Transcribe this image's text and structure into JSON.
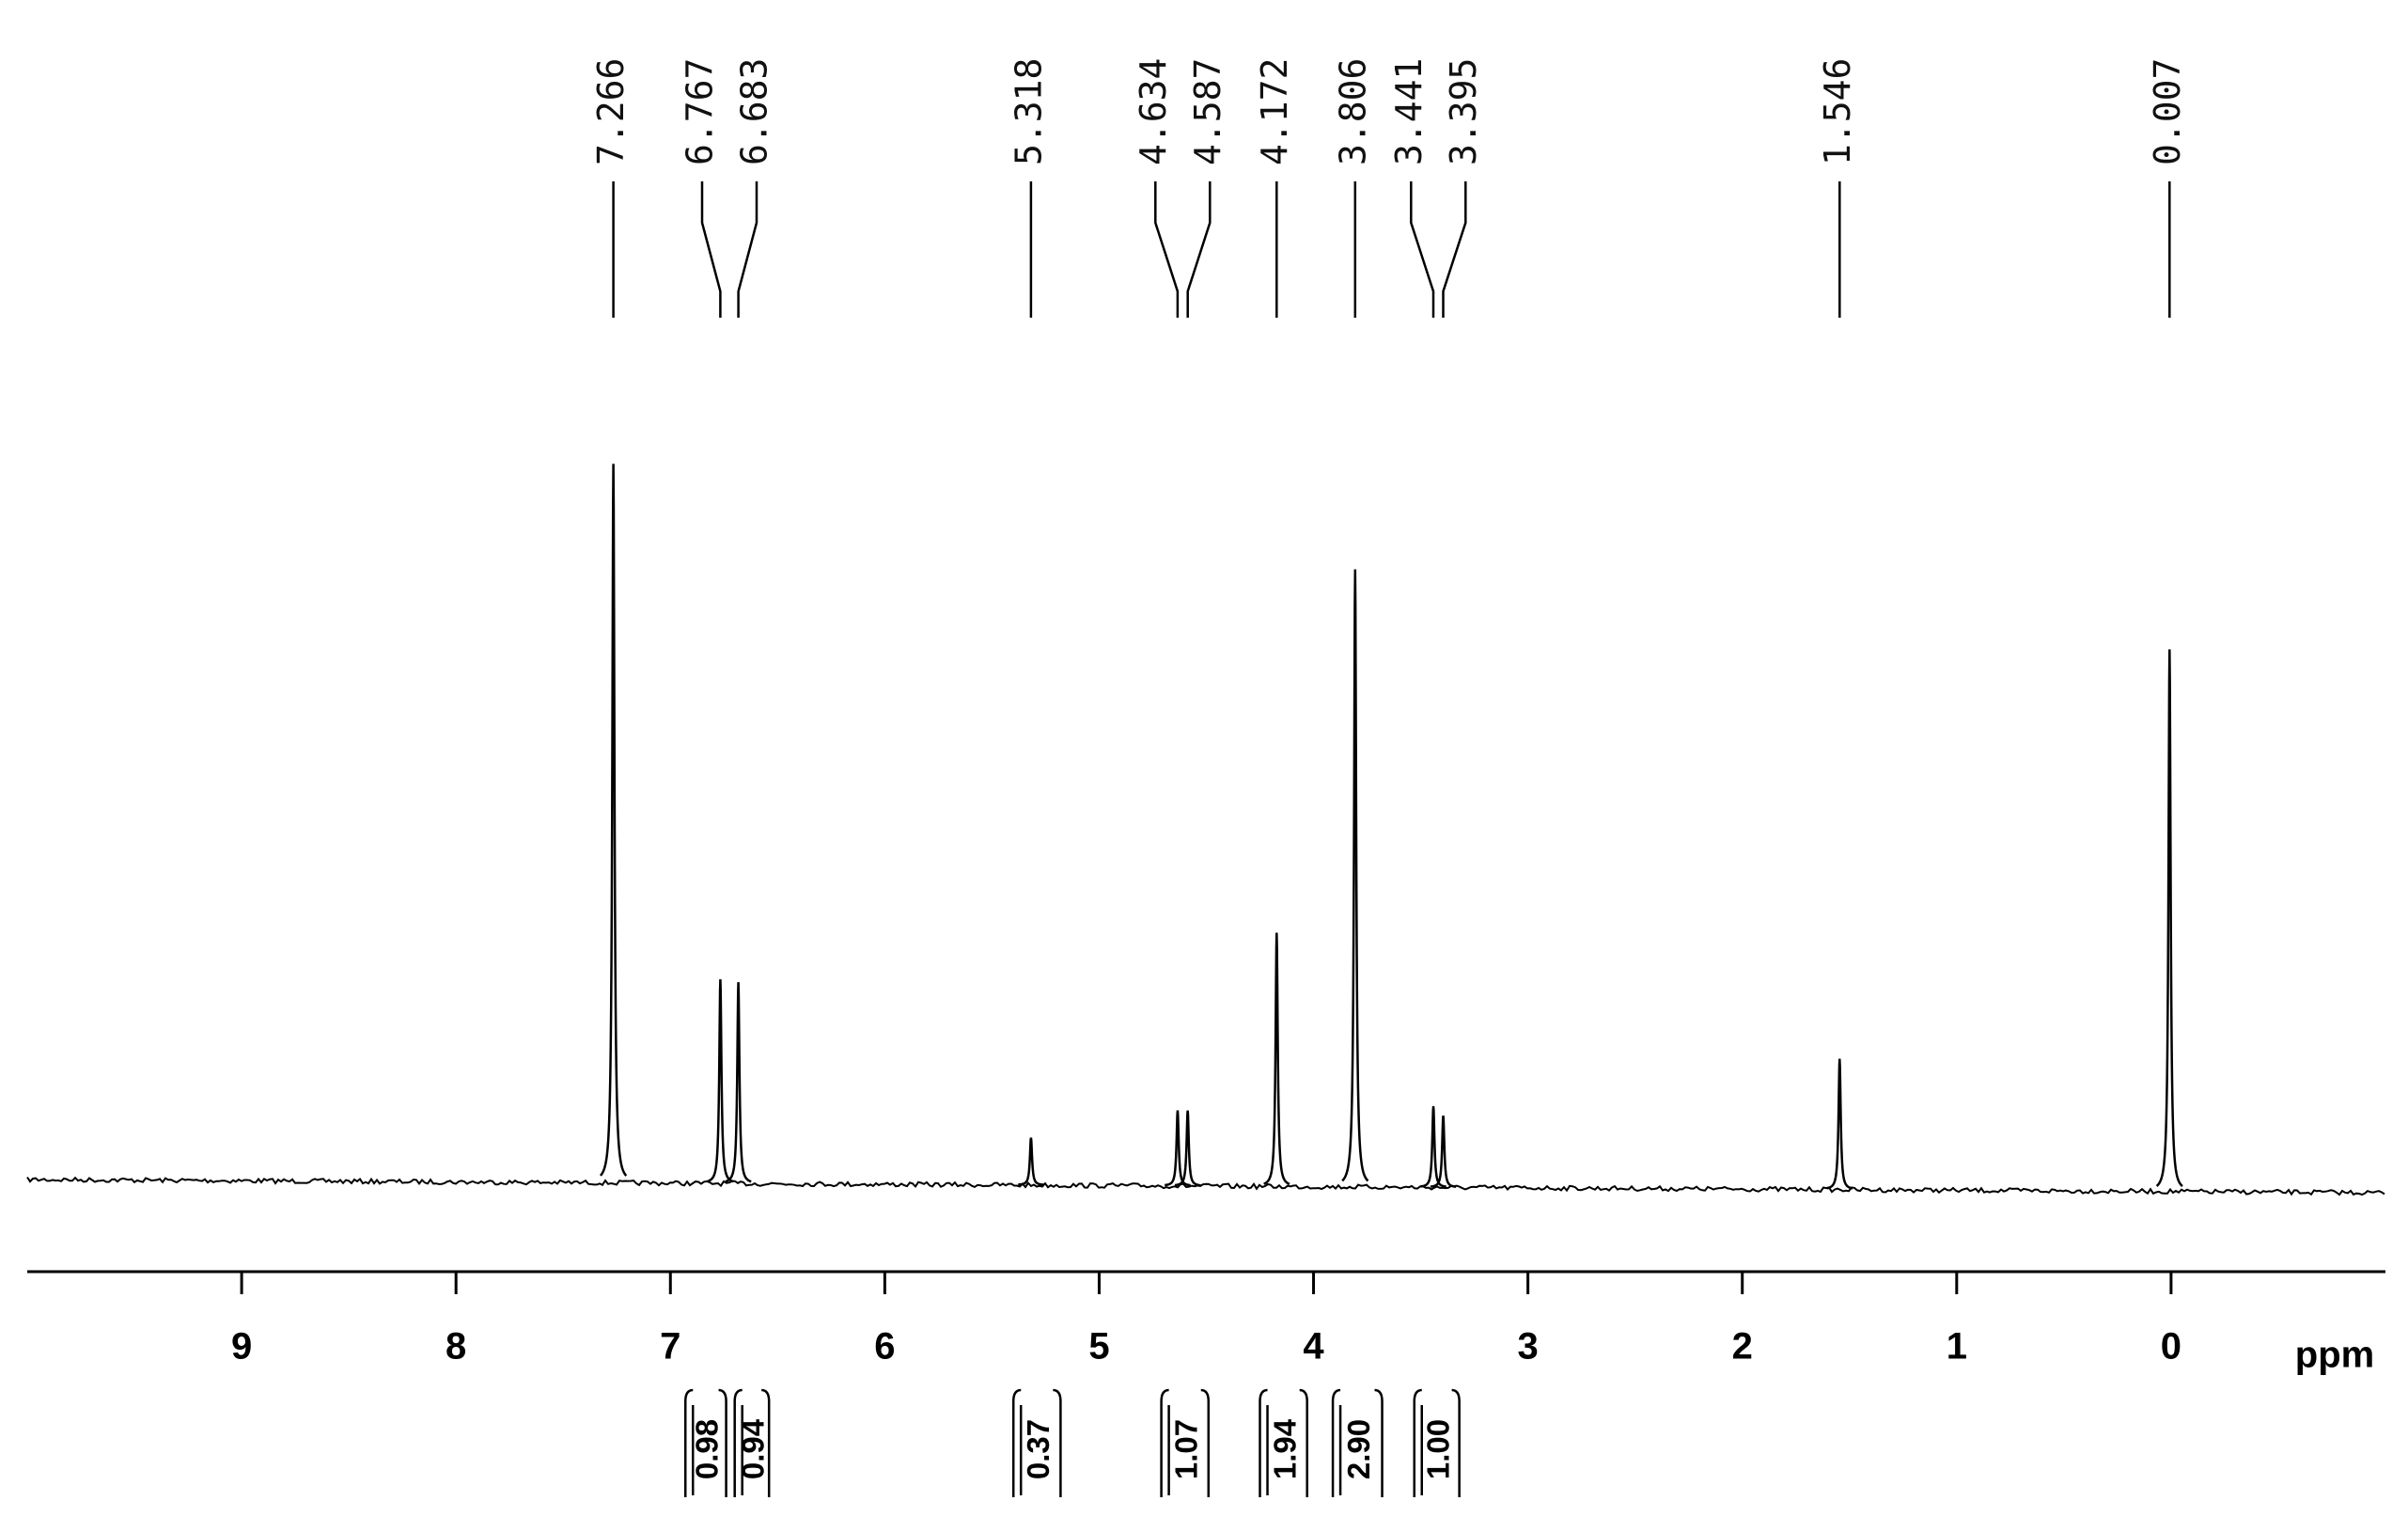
{
  "chart_data": {
    "type": "nmr",
    "x_label": "ppm",
    "xlim": [
      10,
      -1
    ],
    "xticks": [
      9,
      8,
      7,
      6,
      5,
      4,
      3,
      2,
      1,
      0
    ],
    "ylim": [
      0,
      100
    ],
    "x": [
      7.266,
      6.767,
      6.683,
      5.318,
      4.634,
      4.587,
      4.172,
      3.806,
      3.441,
      3.395,
      1.546,
      0.007
    ],
    "values": [
      100,
      28.4,
      28,
      6.6,
      10.5,
      10.5,
      35.3,
      85.9,
      11.3,
      10,
      18.2,
      75.4
    ],
    "color": "#000000",
    "integrals": {
      "ranges": [
        [
          6.93,
          6.74
        ],
        [
          6.7,
          6.54
        ],
        [
          5.4,
          5.18
        ],
        [
          4.71,
          4.49
        ],
        [
          4.25,
          4.03
        ],
        [
          3.91,
          3.68
        ],
        [
          3.53,
          3.32
        ]
      ],
      "values": [
        0.98,
        0.94,
        0.37,
        1.07,
        1.94,
        2.9,
        1
      ],
      "value_labels": [
        "0.98",
        "0.94",
        "0.37",
        "1.07",
        "1.94",
        "2.90",
        "1.00"
      ]
    }
  }
}
